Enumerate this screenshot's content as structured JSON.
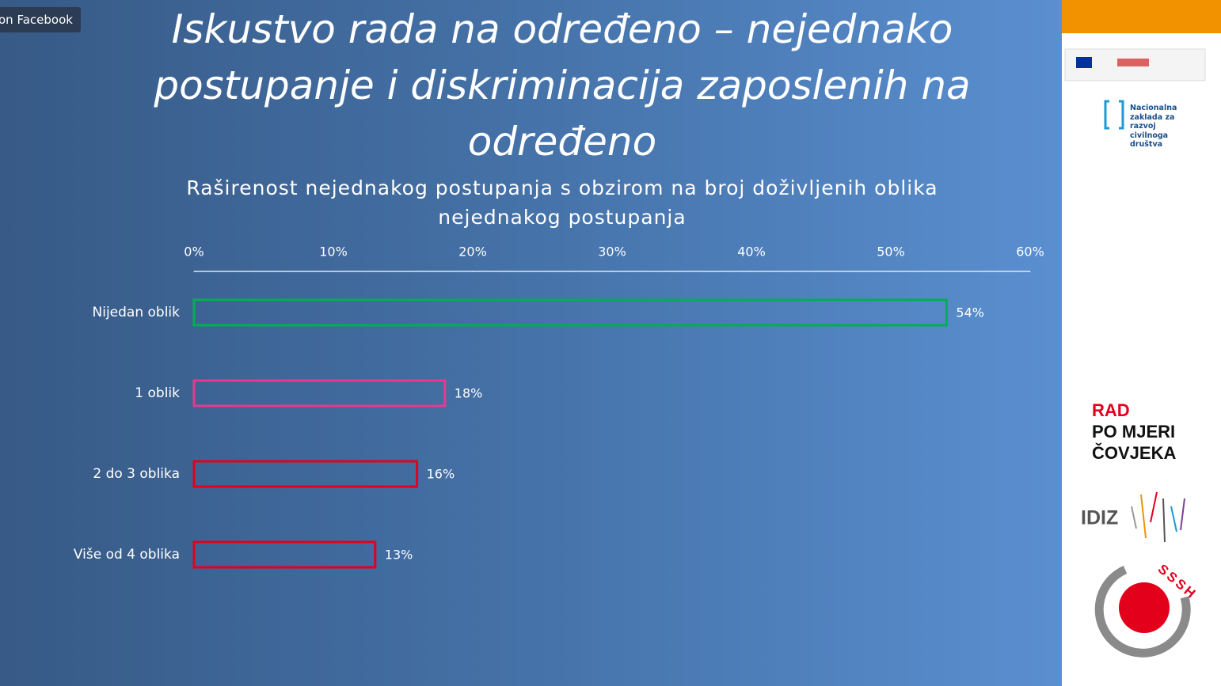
{
  "overlay": {
    "stream_label": "on Facebook"
  },
  "chart_data": {
    "type": "bar",
    "orientation": "horizontal",
    "title": "Iskustvo rada na određeno – nejednako postupanje i diskriminacija zaposlenih na određeno",
    "subtitle": "Raširenost nejednakog postupanja s obzirom na broj doživljenih oblika nejednakog postupanja",
    "categories": [
      "Nijedan oblik",
      "1 oblik",
      "2 do 3 oblika",
      "Više od 4 oblika"
    ],
    "values": [
      54,
      18,
      16,
      13
    ],
    "value_labels": [
      "54%",
      "18%",
      "16%",
      "13%"
    ],
    "colors": [
      "#00b050",
      "#e8388f",
      "#e3001b",
      "#e3001b"
    ],
    "xlim": [
      0,
      60
    ],
    "xticks": [
      {
        "value": 0,
        "label": "0%"
      },
      {
        "value": 10,
        "label": "10%"
      },
      {
        "value": 20,
        "label": "20%"
      },
      {
        "value": 30,
        "label": "30%"
      },
      {
        "value": 40,
        "label": "40%"
      },
      {
        "value": 50,
        "label": "50%"
      },
      {
        "value": 60,
        "label": "60%"
      }
    ]
  },
  "sidebar": {
    "nzrcd": "Nacionalna zaklada za razvoj civilnoga društva",
    "rad_line1": "RAD",
    "rad_line2": "PO MJERI",
    "rad_line3": "ČOVJEKA",
    "idiz": "IDIZ",
    "sssh": "SSSH"
  }
}
